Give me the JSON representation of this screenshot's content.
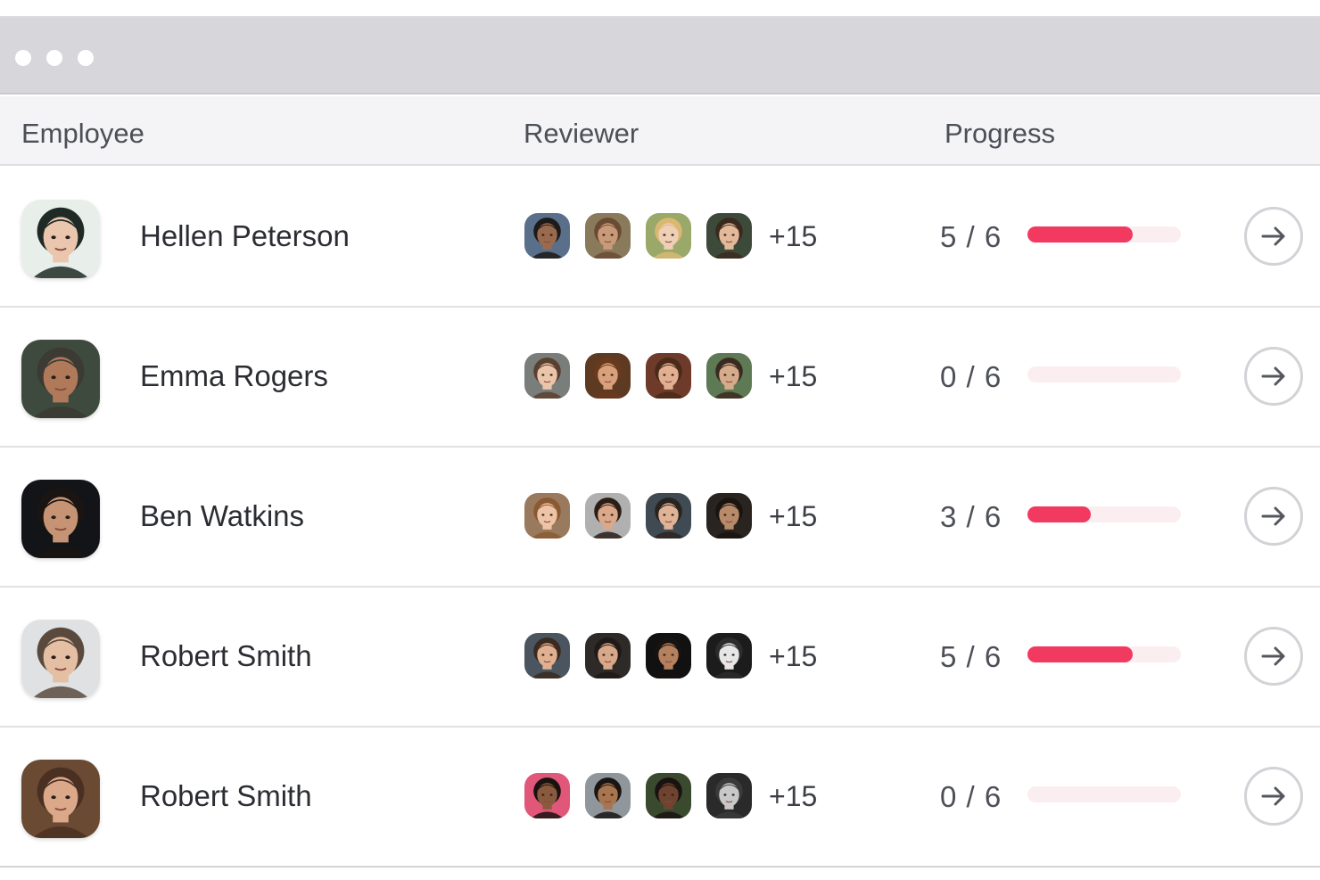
{
  "table": {
    "headers": {
      "employee": "Employee",
      "reviewer": "Reviewer",
      "progress": "Progress"
    },
    "rows": [
      {
        "name": "Hellen Peterson",
        "avatar": {
          "bg": "#e8eeea",
          "skin": "#e9c6ad",
          "hair": "#1f2a26"
        },
        "reviewers": [
          {
            "bg": "#5a6f8a",
            "skin": "#9a6a4e",
            "hair": "#1d1a18"
          },
          {
            "bg": "#8a7a5c",
            "skin": "#c99a7a",
            "hair": "#6b4a32"
          },
          {
            "bg": "#9aa86a",
            "skin": "#efcfb5",
            "hair": "#d9b872"
          },
          {
            "bg": "#3d4a3a",
            "skin": "#e3b99a",
            "hair": "#3a2a1e"
          }
        ],
        "more": "+15",
        "progress": "5 / 6",
        "completed": 5,
        "total": 6
      },
      {
        "name": "Emma Rogers",
        "avatar": {
          "bg": "#3f4a3f",
          "skin": "#b07a5a",
          "hair": "#3b3a33"
        },
        "reviewers": [
          {
            "bg": "#7a7e7a",
            "skin": "#eac5aa",
            "hair": "#5a4030"
          },
          {
            "bg": "#5e3a22",
            "skin": "#d9a07c",
            "hair": "#6a3a1c"
          },
          {
            "bg": "#6e3a2a",
            "skin": "#e2b091",
            "hair": "#4a2a18"
          },
          {
            "bg": "#5e7a54",
            "skin": "#d6ab8c",
            "hair": "#3a2a20"
          }
        ],
        "more": "+15",
        "progress": "0 / 6",
        "completed": 0,
        "total": 6
      },
      {
        "name": "Ben Watkins",
        "avatar": {
          "bg": "#121417",
          "skin": "#c69474",
          "hair": "#1a1412"
        },
        "reviewers": [
          {
            "bg": "#9a7a5e",
            "skin": "#edc4a6",
            "hair": "#8a5a32"
          },
          {
            "bg": "#b0b0b0",
            "skin": "#dba98a",
            "hair": "#2a1e16"
          },
          {
            "bg": "#3f4a52",
            "skin": "#e0b397",
            "hair": "#2a2420"
          },
          {
            "bg": "#2a2420",
            "skin": "#b78a6a",
            "hair": "#1a1410"
          }
        ],
        "more": "+15",
        "progress": "3 / 6",
        "completed": 3,
        "total": 6
      },
      {
        "name": "Robert Smith",
        "avatar": {
          "bg": "#dfe1e3",
          "skin": "#e5bfa3",
          "hair": "#5a4a3e"
        },
        "reviewers": [
          {
            "bg": "#4a5560",
            "skin": "#e0b091",
            "hair": "#3a2a20"
          },
          {
            "bg": "#2e2a28",
            "skin": "#d8a88a",
            "hair": "#1f1a17"
          },
          {
            "bg": "#111111",
            "skin": "#b5805e",
            "hair": "#181210"
          },
          {
            "bg": "#1c1c1c",
            "skin": "#e6e6e6",
            "hair": "#2c2c2c"
          }
        ],
        "more": "+15",
        "progress": "5 / 6",
        "completed": 5,
        "total": 6
      },
      {
        "name": "Robert Smith",
        "avatar": {
          "bg": "#6a4a32",
          "skin": "#dba98a",
          "hair": "#4a3022"
        },
        "reviewers": [
          {
            "bg": "#e0577a",
            "skin": "#8a5a3e",
            "hair": "#1a1210"
          },
          {
            "bg": "#8f969c",
            "skin": "#a8754f",
            "hair": "#1a1412"
          },
          {
            "bg": "#3a4a2e",
            "skin": "#6e4430",
            "hair": "#1a1210"
          },
          {
            "bg": "#2a2a2a",
            "skin": "#c8c8c8",
            "hair": "#3a3a3a"
          }
        ],
        "more": "+15",
        "progress": "0 / 6",
        "completed": 0,
        "total": 6
      }
    ]
  },
  "colors": {
    "accent": "#f2395f",
    "track": "#fbeef1",
    "titlebar": "#d6d6db",
    "header_bg": "#f4f4f7"
  },
  "icons": {
    "window_controls": "traffic-dots",
    "row_action": "arrow-right-circle-icon"
  }
}
